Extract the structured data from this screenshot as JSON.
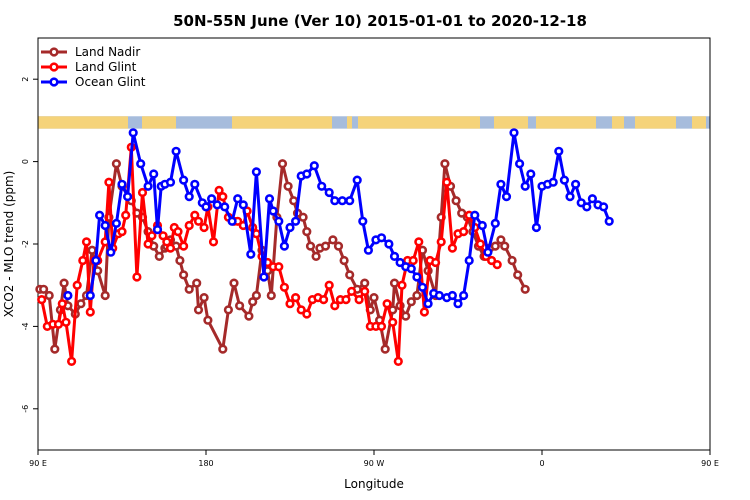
{
  "chart_data": {
    "type": "line",
    "title": "50N-55N June (Ver 10)   2015-01-01 to 2020-12-18",
    "xlabel": "Longitude",
    "ylabel": "XCO2 - MLO trend (ppm)",
    "xlim": [
      90,
      450
    ],
    "ylim": [
      -7,
      3
    ],
    "x_ticks": [
      {
        "value": 90,
        "label": "90 E"
      },
      {
        "value": 180,
        "label": "180"
      },
      {
        "value": 270,
        "label": "90 W"
      },
      {
        "value": 360,
        "label": "0"
      },
      {
        "value": 450,
        "label": "90 E"
      },
      {
        "value": 540,
        "label": "180"
      }
    ],
    "y_ticks": [
      {
        "value": -6,
        "label": "-6"
      },
      {
        "value": -4,
        "label": "-4"
      },
      {
        "value": -2,
        "label": "-2"
      },
      {
        "value": 0,
        "label": "0"
      },
      {
        "value": 2,
        "label": "2"
      }
    ],
    "legend_position": "top-left",
    "land_mask_band": {
      "y_top": 1.1,
      "y_bottom": 0.8,
      "land_color": "#f5d37a",
      "ocean_color": "#a6bcdc"
    },
    "series": [
      {
        "name": "Land Nadir",
        "color": "#a52a2a",
        "x": [
          91,
          93,
          96,
          99,
          102,
          104,
          106,
          110,
          113,
          116,
          119,
          122,
          126,
          128,
          132,
          135,
          140,
          143,
          146,
          149,
          152,
          155,
          158,
          159,
          161,
          164,
          166,
          168,
          171,
          175,
          176,
          179,
          181,
          189,
          192,
          195,
          198,
          203,
          205,
          207,
          210,
          213,
          215,
          218,
          221,
          224,
          227,
          229,
          232,
          234,
          236,
          239,
          241,
          244,
          248,
          251,
          254,
          257,
          261,
          265,
          268,
          270,
          273,
          276,
          280,
          281,
          284,
          287,
          290,
          293,
          296,
          299,
          303,
          306,
          308,
          311,
          314,
          317,
          320,
          323,
          326,
          329,
          332,
          335,
          338,
          340,
          344,
          347,
          351
        ],
        "y": [
          -3.1,
          -3.1,
          -3.25,
          -4.55,
          -3.6,
          -2.95,
          -3.5,
          -3.7,
          -3.45,
          -3.25,
          -2.15,
          -2.65,
          -3.25,
          -1.35,
          -0.05,
          -0.6,
          -0.95,
          -1.25,
          -1.35,
          -1.7,
          -2.05,
          -2.3,
          -2.1,
          -2.05,
          -1.9,
          -2.05,
          -2.4,
          -2.75,
          -3.1,
          -2.95,
          -3.6,
          -3.3,
          -3.85,
          -4.55,
          -3.6,
          -2.95,
          -3.5,
          -3.75,
          -3.4,
          -3.25,
          -2.15,
          -2.65,
          -3.25,
          -1.35,
          -0.05,
          -0.6,
          -0.95,
          -1.25,
          -1.35,
          -1.7,
          -2.05,
          -2.3,
          -2.1,
          -2.05,
          -1.9,
          -2.05,
          -2.4,
          -2.75,
          -3.1,
          -2.95,
          -3.6,
          -3.3,
          -3.85,
          -4.55,
          -3.6,
          -2.95,
          -3.5,
          -3.75,
          -3.4,
          -3.25,
          -2.15,
          -2.65,
          -3.25,
          -1.35,
          -0.05,
          -0.6,
          -0.95,
          -1.25,
          -1.35,
          -1.7,
          -2.05,
          -2.3,
          -2.1,
          -2.05,
          -1.9,
          -2.05,
          -2.4,
          -2.75,
          -3.1
        ]
      },
      {
        "name": "Land Glint",
        "color": "#ff0000",
        "x": [
          92,
          95,
          98,
          101,
          103,
          105,
          108,
          111,
          114,
          116,
          118,
          120,
          122,
          126,
          128,
          130,
          133,
          135,
          137,
          140,
          143,
          146,
          149,
          151,
          154,
          157,
          159,
          161,
          163,
          165,
          168,
          171,
          174,
          176,
          179,
          181,
          184,
          187,
          189,
          192,
          195,
          197,
          200,
          202,
          205,
          207,
          210,
          213,
          216,
          219,
          222,
          225,
          228,
          231,
          234,
          237,
          240,
          243,
          246,
          249,
          252,
          255,
          258,
          262,
          265,
          268,
          271,
          274,
          277,
          280,
          283,
          285,
          288,
          291,
          294,
          297,
          300,
          303,
          306,
          309,
          312,
          315,
          318,
          321,
          324,
          327,
          330,
          333,
          336
        ],
        "y": [
          -3.35,
          -4.0,
          -3.95,
          -3.95,
          -3.45,
          -3.9,
          -4.85,
          -3.0,
          -2.4,
          -1.95,
          -3.65,
          -2.4,
          -2.4,
          -1.95,
          -0.5,
          -2.1,
          -1.75,
          -1.7,
          -1.3,
          0.35,
          -2.8,
          -0.75,
          -2.0,
          -1.8,
          -1.55,
          -1.8,
          -1.95,
          -2.1,
          -1.6,
          -1.7,
          -2.05,
          -1.55,
          -1.3,
          -1.45,
          -1.6,
          -1.1,
          -1.95,
          -0.7,
          -0.85,
          -1.35,
          -1.45,
          -1.45,
          -1.55,
          -1.2,
          -1.6,
          -1.75,
          -2.3,
          -2.45,
          -2.55,
          -2.55,
          -3.05,
          -3.45,
          -3.3,
          -3.6,
          -3.7,
          -3.35,
          -3.3,
          -3.35,
          -3.0,
          -3.5,
          -3.35,
          -3.35,
          -3.15,
          -3.35,
          -3.15,
          -4.0,
          -4.0,
          -4.0,
          -3.45,
          -3.9,
          -4.85,
          -3.0,
          -2.4,
          -2.4,
          -1.95,
          -3.65,
          -2.4,
          -2.45,
          -1.95,
          -0.5,
          -2.1,
          -1.75,
          -1.7,
          -1.3,
          -1.6,
          -2.0,
          -2.3,
          -2.4,
          -2.5
        ]
      },
      {
        "name": "Ocean Glint",
        "color": "#0000ff",
        "x": [
          106,
          118,
          121,
          123,
          126,
          129,
          132,
          135,
          138,
          141,
          145,
          149,
          152,
          154,
          156,
          158,
          161,
          164,
          168,
          171,
          174,
          178,
          180,
          183,
          186,
          190,
          194,
          197,
          200,
          204,
          207,
          211,
          214,
          216,
          219,
          222,
          225,
          228,
          231,
          234,
          238,
          242,
          246,
          249,
          253,
          257,
          261,
          264,
          267,
          271,
          274,
          278,
          281,
          284,
          287,
          290,
          293,
          296,
          299,
          302,
          305,
          309,
          312,
          315,
          318,
          321,
          324,
          328,
          331,
          335,
          338,
          341,
          345,
          348,
          351,
          354,
          357,
          360,
          363,
          366,
          369,
          372,
          375,
          378,
          381,
          384,
          387,
          390,
          393,
          396
        ],
        "y": [
          -3.25,
          -3.25,
          -2.4,
          -1.3,
          -1.55,
          -2.2,
          -1.5,
          -0.55,
          -0.85,
          0.7,
          -0.05,
          -0.6,
          -0.3,
          -1.65,
          -0.6,
          -0.55,
          -0.5,
          0.25,
          -0.45,
          -0.85,
          -0.55,
          -1.0,
          -1.1,
          -0.9,
          -1.05,
          -1.1,
          -1.45,
          -0.9,
          -1.05,
          -2.25,
          -0.25,
          -2.8,
          -0.9,
          -1.2,
          -1.45,
          -2.05,
          -1.6,
          -1.45,
          -0.35,
          -0.3,
          -0.1,
          -0.6,
          -0.75,
          -0.95,
          -0.95,
          -0.95,
          -0.45,
          -1.45,
          -2.15,
          -1.9,
          -1.85,
          -2.0,
          -2.3,
          -2.45,
          -2.55,
          -2.6,
          -2.8,
          -3.05,
          -3.45,
          -3.2,
          -3.25,
          -3.3,
          -3.25,
          -3.45,
          -3.25,
          -2.4,
          -1.3,
          -1.55,
          -2.2,
          -1.5,
          -0.55,
          -0.85,
          0.7,
          -0.05,
          -0.6,
          -0.3,
          -1.6,
          -0.6,
          -0.55,
          -0.5,
          0.25,
          -0.45,
          -0.85,
          -0.55,
          -1.0,
          -1.1,
          -0.9,
          -1.05,
          -1.1,
          -1.45
        ]
      }
    ]
  }
}
